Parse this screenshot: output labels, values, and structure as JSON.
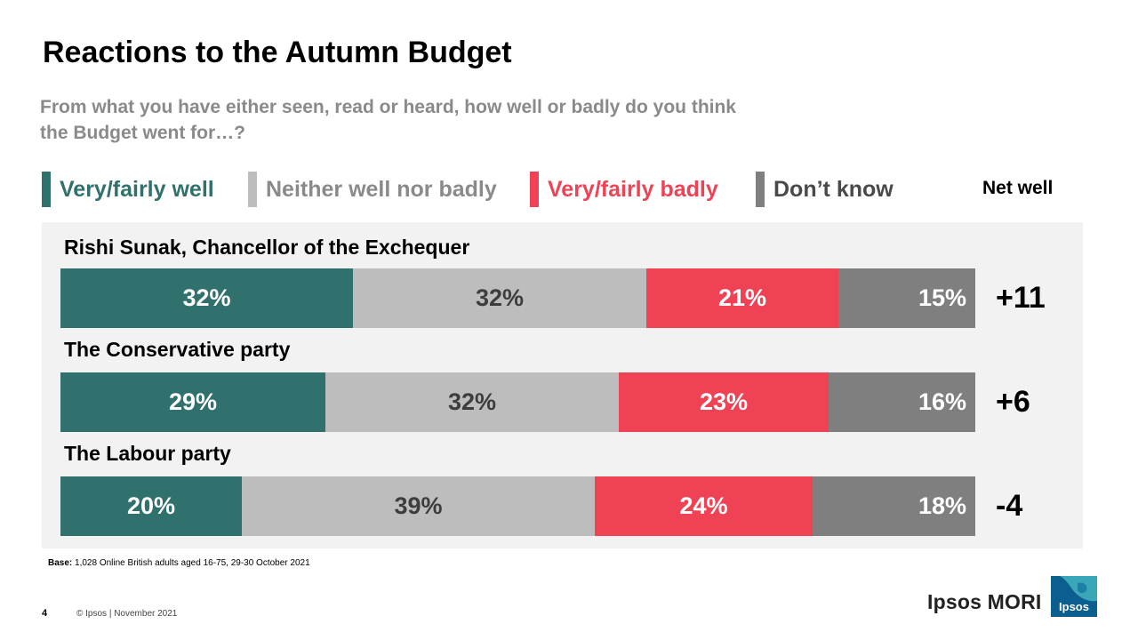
{
  "title": "Reactions to the Autumn Budget",
  "subtitle": "From what you have either seen, read or heard, how well or badly do you think the Budget went for…?",
  "net_header": "Net well",
  "base_label": "Base:",
  "base_text": "1,028 Online British adults aged 16-75, 29-30 October 2021",
  "page_number": "4",
  "copyright": "© Ipsos | November 2021",
  "logo_text": "Ipsos MORI",
  "logo_badge": "Ipsos",
  "chart_data": {
    "type": "bar",
    "orientation": "horizontal",
    "stacked": true,
    "title": "Reactions to the Autumn Budget",
    "categories": [
      "Rishi Sunak, Chancellor of the Exchequer",
      "The Conservative party",
      "The Labour party"
    ],
    "series": [
      {
        "name": "Very/fairly well",
        "color": "#30716d",
        "text_color": "#ffffff",
        "values": [
          32,
          29,
          20
        ]
      },
      {
        "name": "Neither well nor badly",
        "color": "#bdbdbd",
        "text_color": "#3d3d3d",
        "values": [
          32,
          32,
          39
        ]
      },
      {
        "name": "Very/fairly badly",
        "color": "#ef4254",
        "text_color": "#ffffff",
        "values": [
          21,
          23,
          24
        ]
      },
      {
        "name": "Don’t know",
        "color": "#7f7f7f",
        "text_color": "#ffffff",
        "values": [
          15,
          16,
          18
        ]
      }
    ],
    "net_well": [
      "+11",
      "+6",
      "-4"
    ],
    "legend_placement": "top",
    "legend_text_colors": [
      "#30716d",
      "#8a8a8a",
      "#ef4254",
      "#4a4a4a"
    ],
    "value_suffix": "%"
  }
}
